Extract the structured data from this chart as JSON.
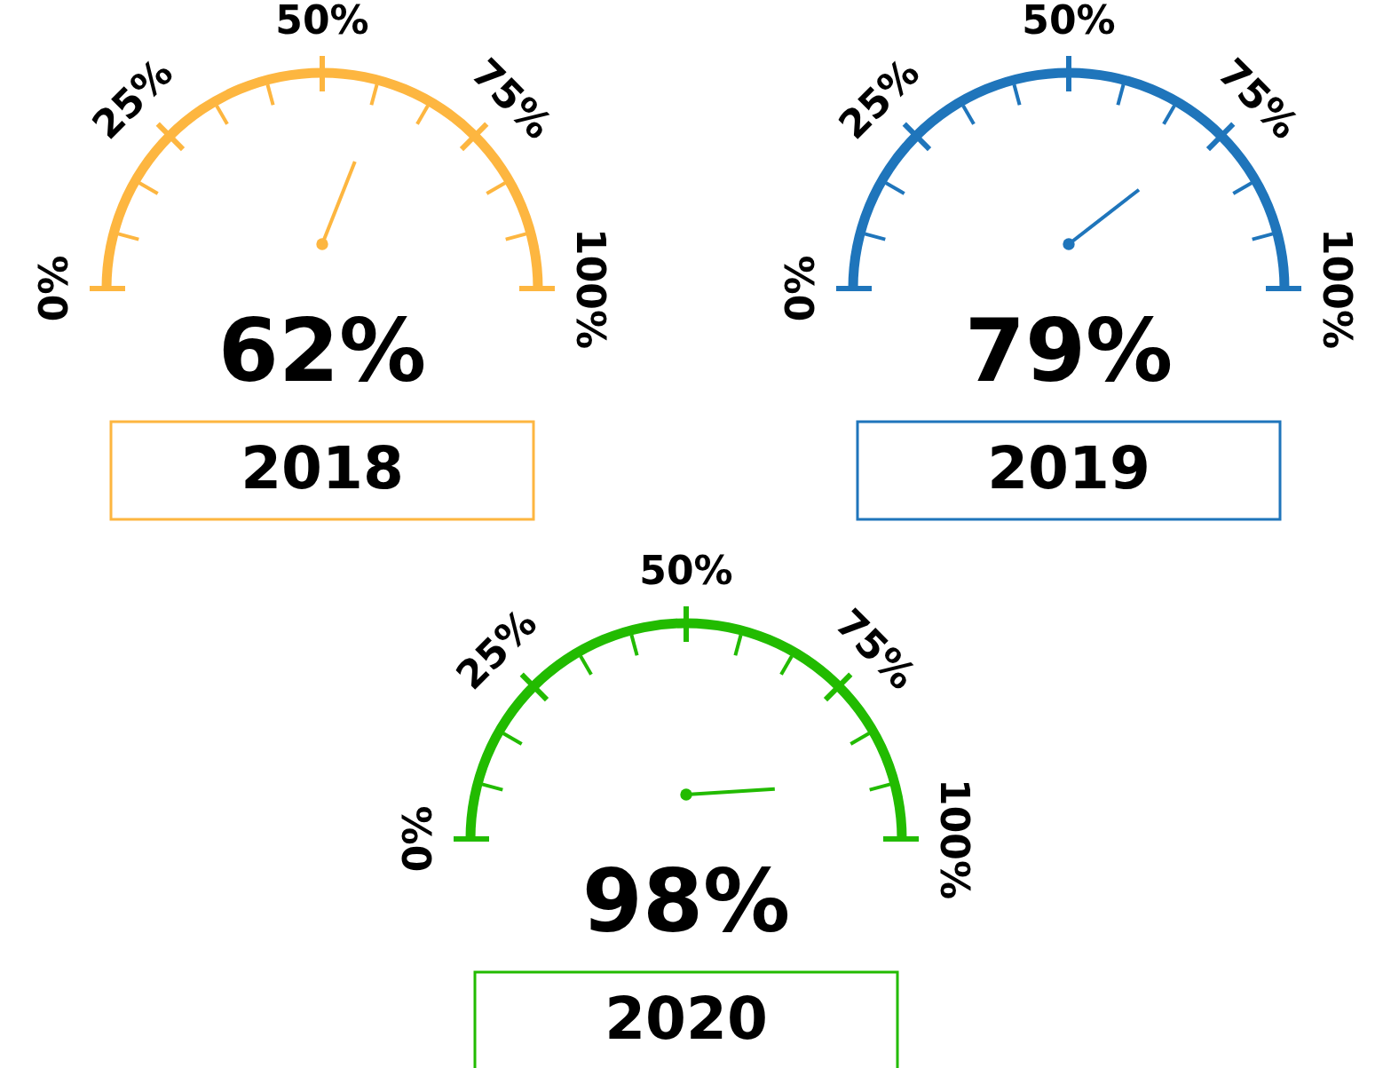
{
  "chart_data": [
    {
      "type": "other",
      "title": "2018",
      "values": [
        62
      ],
      "value_labels": [
        "62%"
      ],
      "color": "#fdb640",
      "annotations": [
        "0%",
        "25%",
        "50%",
        "75%",
        "100%"
      ]
    },
    {
      "type": "other",
      "title": "2019",
      "values": [
        79
      ],
      "value_labels": [
        "79%"
      ],
      "color": "#1f75bb",
      "annotations": [
        "0%",
        "25%",
        "50%",
        "75%",
        "100%"
      ]
    },
    {
      "type": "other",
      "title": "2020",
      "values": [
        98
      ],
      "value_labels": [
        "98%"
      ],
      "color": "#22bb00",
      "annotations": [
        "0%",
        "25%",
        "50%",
        "75%",
        "100%"
      ]
    }
  ]
}
